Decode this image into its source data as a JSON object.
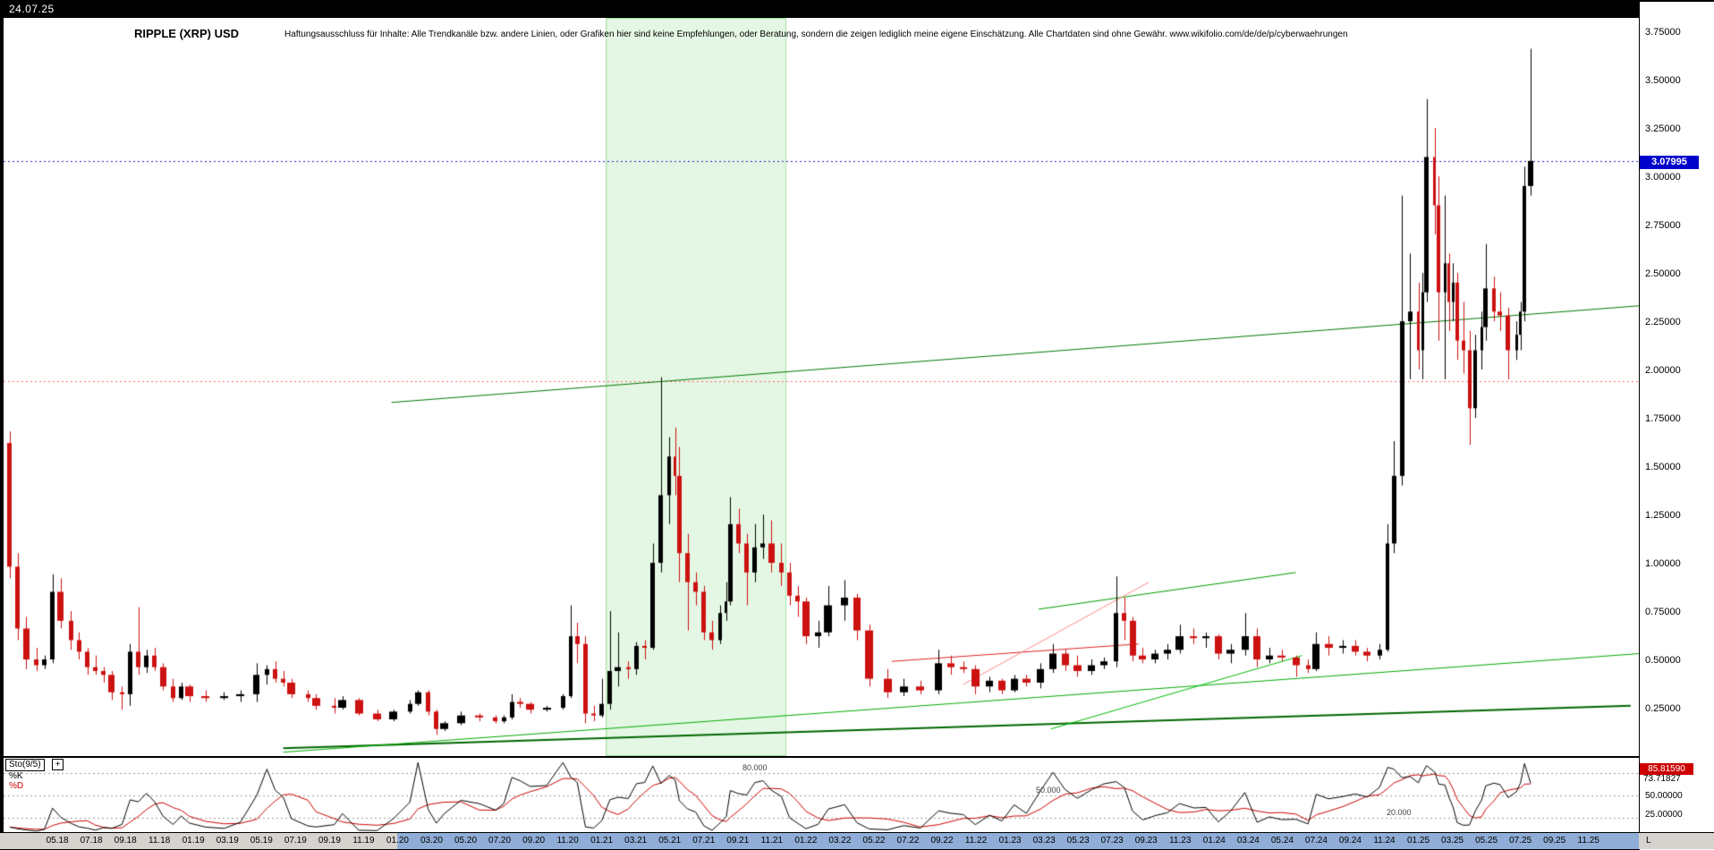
{
  "header": {
    "date": "24.07.25",
    "title": "RIPPLE (XRP) USD",
    "disclaimer": "Haftungsausschluss für Inhalte: Alle Trendkanäle bzw. andere Linien, oder Grafiken hier sind keine Empfehlungen, oder Beratung, sondern die zeigen lediglich meine eigene Einschätzung. Alle Chartdaten sind ohne Gewähr.  www.wikifolio.com/de/de/p/cyberwaehrungen"
  },
  "price_axis": {
    "labels": [
      "3.75000",
      "3.50000",
      "3.25000",
      "3.00000",
      "2.75000",
      "2.50000",
      "2.25000",
      "2.00000",
      "1.75000",
      "1.50000",
      "1.25000",
      "1.00000",
      "0.75000",
      "0.50000",
      "0.25000"
    ],
    "current_tag": "3.07995"
  },
  "x_axis": {
    "labels": [
      "05.18",
      "07.18",
      "09.18",
      "11.18",
      "01.19",
      "03.19",
      "05.19",
      "07.19",
      "09.19",
      "11.19",
      "01.20",
      "03.20",
      "05.20",
      "07.20",
      "09.20",
      "11.20",
      "01.21",
      "03.21",
      "05.21",
      "07.21",
      "09.21",
      "11.21",
      "01.22",
      "03.22",
      "05.22",
      "07.22",
      "09.22",
      "11.22",
      "01.23",
      "03.23",
      "05.23",
      "07.23",
      "09.23",
      "11.23",
      "01.24",
      "03.24",
      "05.24",
      "07.24",
      "09.24",
      "11.24",
      "01.25",
      "03.25",
      "05.25",
      "07.25",
      "09.25",
      "11.25"
    ],
    "first_label_time": 2018.3333,
    "label_step_years": 0.1666667,
    "highlight_start_time": 2020.0
  },
  "sto": {
    "label": "Sto(9/5)",
    "plus": "+",
    "k_label": "%K",
    "d_label": "%D",
    "k_value": "85.81590",
    "d_value": "73.71827",
    "axis_labels": [
      {
        "text": "50.00000",
        "value": 50
      },
      {
        "text": "25.00000",
        "value": 25
      }
    ],
    "corner_label": "L"
  },
  "chart_data": {
    "type": "candlestick",
    "title": "RIPPLE (XRP) USD",
    "x_unit": "decimal_year",
    "x_range": [
      2018.07,
      2026.08
    ],
    "y_range": [
      0,
      3.82
    ],
    "grid": false,
    "colors": {
      "up": "#000000",
      "down": "#cc1111",
      "band": "rgba(120,215,120,0.20)"
    },
    "current_price": 3.07995,
    "horizontal_lines": [
      {
        "price": 3.07995,
        "color": "#2222cc",
        "style": "dotted",
        "tag": "3.07995"
      },
      {
        "price": 1.94,
        "color": "#ff6666",
        "style": "dotted"
      }
    ],
    "trend_lines": [
      {
        "t1": 2019.97,
        "p1": 1.83,
        "t2": 2026.08,
        "p2": 2.33,
        "color": "#007700",
        "width": 1
      },
      {
        "t1": 2023.14,
        "p1": 0.76,
        "t2": 2024.4,
        "p2": 0.95,
        "color": "#009900",
        "width": 1
      },
      {
        "t1": 2022.42,
        "p1": 0.49,
        "t2": 2023.63,
        "p2": 0.58,
        "color": "#dd2222",
        "width": 1
      },
      {
        "t1": 2022.77,
        "p1": 0.37,
        "t2": 2023.68,
        "p2": 0.9,
        "color": "#ff8888",
        "width": 1
      },
      {
        "t1": 2019.44,
        "p1": 0.04,
        "t2": 2026.04,
        "p2": 0.26,
        "color": "#006600",
        "width": 2
      },
      {
        "t1": 2019.44,
        "p1": 0.02,
        "t2": 2026.08,
        "p2": 0.53,
        "color": "#00aa00",
        "width": 1
      },
      {
        "t1": 2023.2,
        "p1": 0.14,
        "t2": 2024.43,
        "p2": 0.52,
        "color": "#00bb00",
        "width": 1
      }
    ],
    "shaded_band": {
      "t1": 2021.02,
      "t2": 2021.9
    },
    "indicator": {
      "name": "Sto(9/5)",
      "k_period": 9,
      "d_period": 5,
      "levels": [
        80,
        50,
        20
      ],
      "k_last": 85.8159,
      "d_last": 73.71827,
      "k_color": "#000000",
      "d_color": "#cc0000"
    },
    "candles": [
      [
        2018.1,
        1.62,
        1.68,
        0.92,
        0.98
      ],
      [
        2018.14,
        0.98,
        1.05,
        0.6,
        0.66
      ],
      [
        2018.18,
        0.66,
        0.72,
        0.45,
        0.5
      ],
      [
        2018.23,
        0.5,
        0.56,
        0.44,
        0.47
      ],
      [
        2018.27,
        0.47,
        0.52,
        0.45,
        0.5
      ],
      [
        2018.31,
        0.5,
        0.94,
        0.48,
        0.85
      ],
      [
        2018.35,
        0.85,
        0.92,
        0.66,
        0.7
      ],
      [
        2018.4,
        0.7,
        0.75,
        0.55,
        0.6
      ],
      [
        2018.44,
        0.6,
        0.64,
        0.5,
        0.54
      ],
      [
        2018.48,
        0.54,
        0.56,
        0.42,
        0.46
      ],
      [
        2018.52,
        0.46,
        0.52,
        0.42,
        0.44
      ],
      [
        2018.56,
        0.44,
        0.46,
        0.38,
        0.42
      ],
      [
        2018.6,
        0.42,
        0.44,
        0.29,
        0.33
      ],
      [
        2018.65,
        0.33,
        0.36,
        0.24,
        0.32
      ],
      [
        2018.69,
        0.32,
        0.58,
        0.26,
        0.54
      ],
      [
        2018.73,
        0.54,
        0.77,
        0.42,
        0.46
      ],
      [
        2018.77,
        0.46,
        0.55,
        0.43,
        0.52
      ],
      [
        2018.81,
        0.52,
        0.56,
        0.44,
        0.46
      ],
      [
        2018.85,
        0.46,
        0.48,
        0.34,
        0.36
      ],
      [
        2018.9,
        0.36,
        0.4,
        0.28,
        0.3
      ],
      [
        2018.94,
        0.3,
        0.38,
        0.29,
        0.36
      ],
      [
        2018.98,
        0.36,
        0.37,
        0.28,
        0.31
      ],
      [
        2019.06,
        0.31,
        0.34,
        0.28,
        0.3
      ],
      [
        2019.15,
        0.3,
        0.33,
        0.29,
        0.31
      ],
      [
        2019.23,
        0.31,
        0.34,
        0.28,
        0.32
      ],
      [
        2019.31,
        0.32,
        0.48,
        0.28,
        0.42
      ],
      [
        2019.36,
        0.42,
        0.47,
        0.37,
        0.45
      ],
      [
        2019.4,
        0.45,
        0.49,
        0.38,
        0.4
      ],
      [
        2019.44,
        0.4,
        0.44,
        0.36,
        0.38
      ],
      [
        2019.48,
        0.38,
        0.4,
        0.3,
        0.32
      ],
      [
        2019.56,
        0.32,
        0.34,
        0.28,
        0.3
      ],
      [
        2019.6,
        0.3,
        0.32,
        0.24,
        0.26
      ],
      [
        2019.69,
        0.26,
        0.3,
        0.22,
        0.25
      ],
      [
        2019.73,
        0.25,
        0.31,
        0.24,
        0.29
      ],
      [
        2019.81,
        0.29,
        0.3,
        0.21,
        0.22
      ],
      [
        2019.9,
        0.22,
        0.24,
        0.18,
        0.19
      ],
      [
        2019.98,
        0.19,
        0.24,
        0.18,
        0.23
      ],
      [
        2020.06,
        0.23,
        0.29,
        0.22,
        0.27
      ],
      [
        2020.1,
        0.27,
        0.34,
        0.26,
        0.33
      ],
      [
        2020.15,
        0.33,
        0.34,
        0.21,
        0.23
      ],
      [
        2020.19,
        0.23,
        0.24,
        0.11,
        0.14
      ],
      [
        2020.23,
        0.14,
        0.18,
        0.13,
        0.17
      ],
      [
        2020.31,
        0.17,
        0.23,
        0.16,
        0.21
      ],
      [
        2020.4,
        0.21,
        0.22,
        0.18,
        0.2
      ],
      [
        2020.48,
        0.2,
        0.21,
        0.17,
        0.18
      ],
      [
        2020.52,
        0.18,
        0.21,
        0.17,
        0.2
      ],
      [
        2020.56,
        0.2,
        0.32,
        0.19,
        0.28
      ],
      [
        2020.6,
        0.28,
        0.3,
        0.25,
        0.27
      ],
      [
        2020.65,
        0.27,
        0.28,
        0.22,
        0.24
      ],
      [
        2020.73,
        0.24,
        0.26,
        0.23,
        0.25
      ],
      [
        2020.81,
        0.25,
        0.32,
        0.24,
        0.31
      ],
      [
        2020.85,
        0.31,
        0.78,
        0.3,
        0.62
      ],
      [
        2020.88,
        0.62,
        0.69,
        0.48,
        0.58
      ],
      [
        2020.92,
        0.58,
        0.62,
        0.17,
        0.22
      ],
      [
        2020.96,
        0.22,
        0.26,
        0.18,
        0.21
      ],
      [
        2021.0,
        0.21,
        0.4,
        0.2,
        0.27
      ],
      [
        2021.04,
        0.27,
        0.75,
        0.24,
        0.44
      ],
      [
        2021.08,
        0.44,
        0.64,
        0.36,
        0.46
      ],
      [
        2021.13,
        0.46,
        0.49,
        0.4,
        0.45
      ],
      [
        2021.17,
        0.45,
        0.59,
        0.42,
        0.57
      ],
      [
        2021.21,
        0.57,
        0.6,
        0.5,
        0.56
      ],
      [
        2021.25,
        0.56,
        1.1,
        0.55,
        1.0
      ],
      [
        2021.29,
        1.0,
        1.96,
        0.95,
        1.35
      ],
      [
        2021.33,
        1.35,
        1.65,
        1.2,
        1.55
      ],
      [
        2021.36,
        1.55,
        1.7,
        1.35,
        1.45
      ],
      [
        2021.38,
        1.45,
        1.6,
        0.9,
        1.05
      ],
      [
        2021.42,
        1.05,
        1.15,
        0.65,
        0.9
      ],
      [
        2021.46,
        0.9,
        0.95,
        0.78,
        0.85
      ],
      [
        2021.5,
        0.85,
        0.88,
        0.6,
        0.64
      ],
      [
        2021.54,
        0.64,
        0.7,
        0.55,
        0.6
      ],
      [
        2021.58,
        0.6,
        0.78,
        0.58,
        0.74
      ],
      [
        2021.61,
        0.74,
        0.9,
        0.7,
        0.8
      ],
      [
        2021.63,
        0.8,
        1.34,
        0.78,
        1.2
      ],
      [
        2021.67,
        1.2,
        1.28,
        1.05,
        1.1
      ],
      [
        2021.71,
        1.1,
        1.15,
        0.78,
        0.95
      ],
      [
        2021.75,
        0.95,
        1.2,
        0.9,
        1.08
      ],
      [
        2021.79,
        1.08,
        1.25,
        1.02,
        1.1
      ],
      [
        2021.83,
        1.1,
        1.22,
        0.95,
        1.0
      ],
      [
        2021.88,
        1.0,
        1.1,
        0.88,
        0.95
      ],
      [
        2021.92,
        0.95,
        1.0,
        0.78,
        0.83
      ],
      [
        2021.96,
        0.83,
        0.88,
        0.72,
        0.8
      ],
      [
        2022.0,
        0.8,
        0.82,
        0.58,
        0.62
      ],
      [
        2022.06,
        0.62,
        0.7,
        0.56,
        0.64
      ],
      [
        2022.11,
        0.64,
        0.88,
        0.62,
        0.78
      ],
      [
        2022.19,
        0.78,
        0.91,
        0.7,
        0.82
      ],
      [
        2022.25,
        0.82,
        0.84,
        0.6,
        0.65
      ],
      [
        2022.31,
        0.65,
        0.68,
        0.36,
        0.4
      ],
      [
        2022.4,
        0.4,
        0.45,
        0.3,
        0.33
      ],
      [
        2022.48,
        0.33,
        0.4,
        0.31,
        0.36
      ],
      [
        2022.56,
        0.36,
        0.39,
        0.32,
        0.34
      ],
      [
        2022.65,
        0.34,
        0.55,
        0.32,
        0.48
      ],
      [
        2022.71,
        0.48,
        0.52,
        0.42,
        0.46
      ],
      [
        2022.77,
        0.46,
        0.49,
        0.43,
        0.45
      ],
      [
        2022.83,
        0.45,
        0.47,
        0.32,
        0.36
      ],
      [
        2022.9,
        0.36,
        0.41,
        0.33,
        0.39
      ],
      [
        2022.96,
        0.39,
        0.4,
        0.32,
        0.34
      ],
      [
        2023.02,
        0.34,
        0.42,
        0.33,
        0.4
      ],
      [
        2023.08,
        0.4,
        0.42,
        0.36,
        0.38
      ],
      [
        2023.15,
        0.38,
        0.48,
        0.35,
        0.45
      ],
      [
        2023.21,
        0.45,
        0.58,
        0.43,
        0.53
      ],
      [
        2023.27,
        0.53,
        0.55,
        0.44,
        0.47
      ],
      [
        2023.33,
        0.47,
        0.52,
        0.41,
        0.44
      ],
      [
        2023.4,
        0.44,
        0.5,
        0.42,
        0.47
      ],
      [
        2023.46,
        0.47,
        0.51,
        0.45,
        0.49
      ],
      [
        2023.52,
        0.49,
        0.93,
        0.46,
        0.74
      ],
      [
        2023.56,
        0.74,
        0.82,
        0.6,
        0.7
      ],
      [
        2023.6,
        0.7,
        0.72,
        0.49,
        0.52
      ],
      [
        2023.65,
        0.52,
        0.56,
        0.48,
        0.5
      ],
      [
        2023.71,
        0.5,
        0.55,
        0.48,
        0.53
      ],
      [
        2023.77,
        0.53,
        0.58,
        0.5,
        0.55
      ],
      [
        2023.83,
        0.55,
        0.68,
        0.53,
        0.62
      ],
      [
        2023.9,
        0.62,
        0.66,
        0.58,
        0.61
      ],
      [
        2023.96,
        0.61,
        0.64,
        0.56,
        0.62
      ],
      [
        2024.02,
        0.62,
        0.63,
        0.5,
        0.53
      ],
      [
        2024.08,
        0.53,
        0.58,
        0.48,
        0.55
      ],
      [
        2024.15,
        0.55,
        0.74,
        0.52,
        0.62
      ],
      [
        2024.21,
        0.62,
        0.66,
        0.46,
        0.5
      ],
      [
        2024.27,
        0.5,
        0.56,
        0.48,
        0.52
      ],
      [
        2024.33,
        0.52,
        0.55,
        0.49,
        0.51
      ],
      [
        2024.4,
        0.51,
        0.52,
        0.41,
        0.47
      ],
      [
        2024.46,
        0.47,
        0.5,
        0.43,
        0.45
      ],
      [
        2024.5,
        0.45,
        0.64,
        0.44,
        0.58
      ],
      [
        2024.56,
        0.58,
        0.62,
        0.52,
        0.56
      ],
      [
        2024.63,
        0.56,
        0.6,
        0.53,
        0.57
      ],
      [
        2024.69,
        0.57,
        0.6,
        0.52,
        0.54
      ],
      [
        2024.75,
        0.54,
        0.56,
        0.49,
        0.52
      ],
      [
        2024.81,
        0.52,
        0.58,
        0.5,
        0.55
      ],
      [
        2024.85,
        0.55,
        1.2,
        0.54,
        1.1
      ],
      [
        2024.88,
        1.1,
        1.63,
        1.05,
        1.45
      ],
      [
        2024.92,
        1.45,
        2.9,
        1.4,
        2.25
      ],
      [
        2024.96,
        2.25,
        2.6,
        1.95,
        2.3
      ],
      [
        2025.0,
        2.3,
        2.45,
        2.0,
        2.1
      ],
      [
        2025.02,
        2.1,
        2.5,
        1.95,
        2.4
      ],
      [
        2025.04,
        2.4,
        3.4,
        2.35,
        3.1
      ],
      [
        2025.08,
        3.1,
        3.25,
        2.7,
        2.85
      ],
      [
        2025.1,
        2.85,
        3.0,
        2.15,
        2.4
      ],
      [
        2025.13,
        2.4,
        2.9,
        1.95,
        2.55
      ],
      [
        2025.15,
        2.55,
        2.6,
        2.2,
        2.35
      ],
      [
        2025.17,
        2.35,
        2.55,
        2.25,
        2.45
      ],
      [
        2025.19,
        2.45,
        2.5,
        2.05,
        2.15
      ],
      [
        2025.22,
        2.15,
        2.35,
        1.98,
        2.1
      ],
      [
        2025.25,
        2.1,
        2.2,
        1.61,
        1.8
      ],
      [
        2025.28,
        1.8,
        2.18,
        1.75,
        2.1
      ],
      [
        2025.31,
        2.1,
        2.3,
        2.0,
        2.22
      ],
      [
        2025.33,
        2.22,
        2.65,
        2.15,
        2.42
      ],
      [
        2025.37,
        2.42,
        2.48,
        2.25,
        2.3
      ],
      [
        2025.4,
        2.3,
        2.4,
        2.2,
        2.28
      ],
      [
        2025.44,
        2.28,
        2.32,
        1.95,
        2.1
      ],
      [
        2025.48,
        2.1,
        2.25,
        2.05,
        2.18
      ],
      [
        2025.5,
        2.18,
        2.35,
        2.1,
        2.3
      ],
      [
        2025.52,
        2.3,
        3.05,
        2.25,
        2.95
      ],
      [
        2025.55,
        2.95,
        3.66,
        2.9,
        3.08
      ]
    ]
  }
}
